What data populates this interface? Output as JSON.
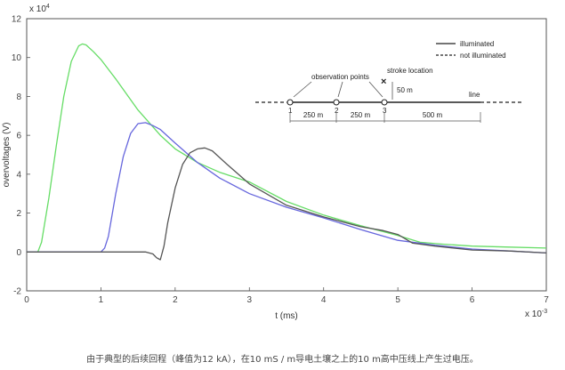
{
  "chart_data": {
    "type": "line",
    "xlabel": "t (ms)",
    "ylabel": "overvoltages (V)",
    "x_exponent": "x 10",
    "x_exponent_power": "-3",
    "y_exponent": "x 10",
    "y_exponent_power": "4",
    "xlim": [
      0,
      7
    ],
    "ylim": [
      -2,
      12
    ],
    "xticks": [
      0,
      1,
      2,
      3,
      4,
      5,
      6,
      7
    ],
    "yticks": [
      -2,
      0,
      2,
      4,
      6,
      8,
      10,
      12
    ],
    "grid": false,
    "series": [
      {
        "color": "#66dd66",
        "x": [
          0,
          0.15,
          0.2,
          0.3,
          0.4,
          0.5,
          0.6,
          0.7,
          0.75,
          0.8,
          0.9,
          1.0,
          1.2,
          1.5,
          1.8,
          2.0,
          2.3,
          2.6,
          3.0,
          3.5,
          4.0,
          4.5,
          5.0,
          5.3,
          5.6,
          6.0,
          6.5,
          7.0
        ],
        "y": [
          0,
          0,
          0.5,
          2.8,
          5.5,
          8.0,
          9.8,
          10.6,
          10.7,
          10.65,
          10.3,
          9.9,
          8.9,
          7.3,
          6.0,
          5.3,
          4.6,
          4.1,
          3.6,
          2.6,
          1.9,
          1.35,
          0.85,
          0.5,
          0.4,
          0.3,
          0.25,
          0.2
        ]
      },
      {
        "color": "#6666dd",
        "x": [
          0,
          0.8,
          0.9,
          1.0,
          1.05,
          1.1,
          1.2,
          1.3,
          1.4,
          1.5,
          1.6,
          1.7,
          1.8,
          2.0,
          2.3,
          2.6,
          3.0,
          3.5,
          4.0,
          4.5,
          5.0,
          5.5,
          6.0,
          6.5,
          7.0
        ],
        "y": [
          0,
          0,
          0,
          0,
          0.2,
          0.8,
          3.0,
          4.9,
          6.1,
          6.6,
          6.65,
          6.5,
          6.3,
          5.6,
          4.6,
          3.8,
          3.0,
          2.3,
          1.75,
          1.15,
          0.6,
          0.35,
          0.15,
          0.05,
          -0.05
        ]
      },
      {
        "color": "#555555",
        "x": [
          0,
          1.6,
          1.7,
          1.75,
          1.8,
          1.85,
          1.9,
          2.0,
          2.1,
          2.2,
          2.3,
          2.4,
          2.5,
          2.7,
          3.0,
          3.5,
          4.0,
          4.5,
          4.8,
          5.0,
          5.2,
          5.5,
          6.0,
          6.5,
          7.0
        ],
        "y": [
          0,
          0,
          -0.1,
          -0.3,
          -0.4,
          0.3,
          1.5,
          3.3,
          4.5,
          5.1,
          5.3,
          5.35,
          5.2,
          4.5,
          3.5,
          2.4,
          1.8,
          1.3,
          1.1,
          0.9,
          0.45,
          0.3,
          0.1,
          0.05,
          -0.05
        ]
      }
    ],
    "legend": {
      "placement": "top-right",
      "entries": [
        {
          "label": "illuminated",
          "style": "solid"
        },
        {
          "label": "not illuminated",
          "style": "dashed"
        }
      ]
    },
    "inset": {
      "observation_label": "observation points",
      "stroke_label": "stroke location",
      "stroke_height": "50 m",
      "line_label": "line",
      "points": [
        "1",
        "2",
        "3"
      ],
      "distances": [
        "250 m",
        "250 m",
        "500 m"
      ]
    }
  },
  "caption": "由于典型的后续回程（峰值为12 kA），在10 mS / m导电土壤之上的10 m高中压线上产生过电压。"
}
